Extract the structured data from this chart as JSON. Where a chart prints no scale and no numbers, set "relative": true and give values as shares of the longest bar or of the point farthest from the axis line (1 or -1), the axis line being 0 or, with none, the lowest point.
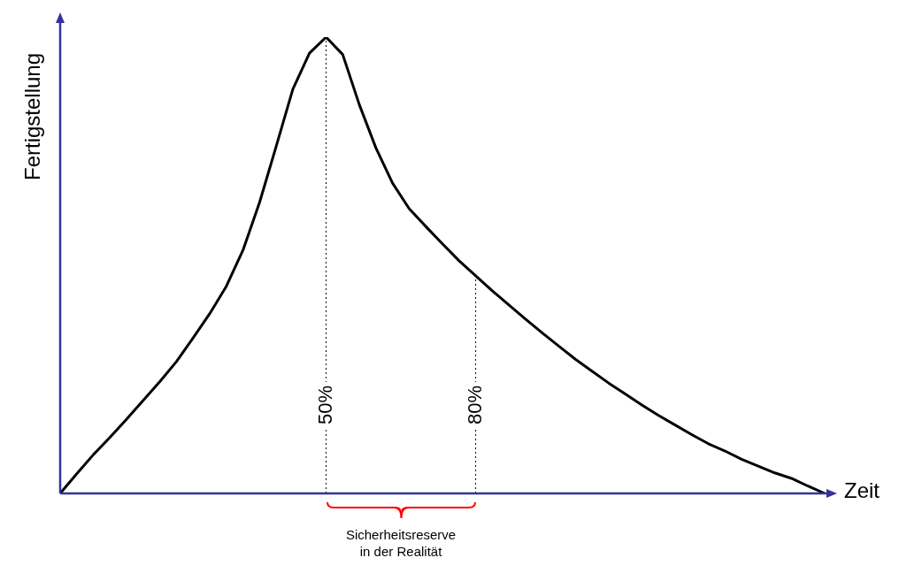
{
  "chart_data": {
    "type": "line",
    "relative": true,
    "xlabel": "Zeit",
    "ylabel": "Fertigstellung",
    "marker": "none",
    "categories": [
      null,
      null,
      null,
      null,
      null,
      null,
      null,
      null,
      null,
      null,
      null,
      null,
      null,
      null,
      null,
      null,
      "50%",
      null,
      null,
      null,
      null,
      null,
      null,
      null,
      null,
      "80%",
      null,
      null,
      null,
      null,
      null,
      null,
      null,
      null,
      null,
      null,
      null,
      null,
      null,
      null,
      null,
      null,
      null,
      null,
      null,
      null,
      null
    ],
    "series": [
      {
        "color": "#000000",
        "values": [
          0,
          0.043,
          0.085,
          0.123,
          0.163,
          0.204,
          0.245,
          0.289,
          0.341,
          0.394,
          0.454,
          0.533,
          0.638,
          0.761,
          0.886,
          0.965,
          1,
          0.962,
          0.852,
          0.757,
          0.68,
          0.624,
          0.585,
          0.547,
          0.51,
          0.477,
          0.444,
          0.413,
          0.382,
          0.352,
          0.323,
          0.294,
          0.268,
          0.242,
          0.218,
          0.194,
          0.171,
          0.15,
          0.129,
          0.109,
          0.093,
          0.075,
          0.06,
          0.045,
          0.033,
          0.016,
          0
        ]
      }
    ],
    "ref_lines": [
      {
        "axis": "x",
        "value": "50%",
        "line_style": "dotted",
        "color": "#000000"
      },
      {
        "axis": "x",
        "value": "80%",
        "line_style": "dotted",
        "color": "#000000"
      }
    ],
    "annotations": [
      "Sicherheitsreserve\nin der Realität"
    ]
  }
}
